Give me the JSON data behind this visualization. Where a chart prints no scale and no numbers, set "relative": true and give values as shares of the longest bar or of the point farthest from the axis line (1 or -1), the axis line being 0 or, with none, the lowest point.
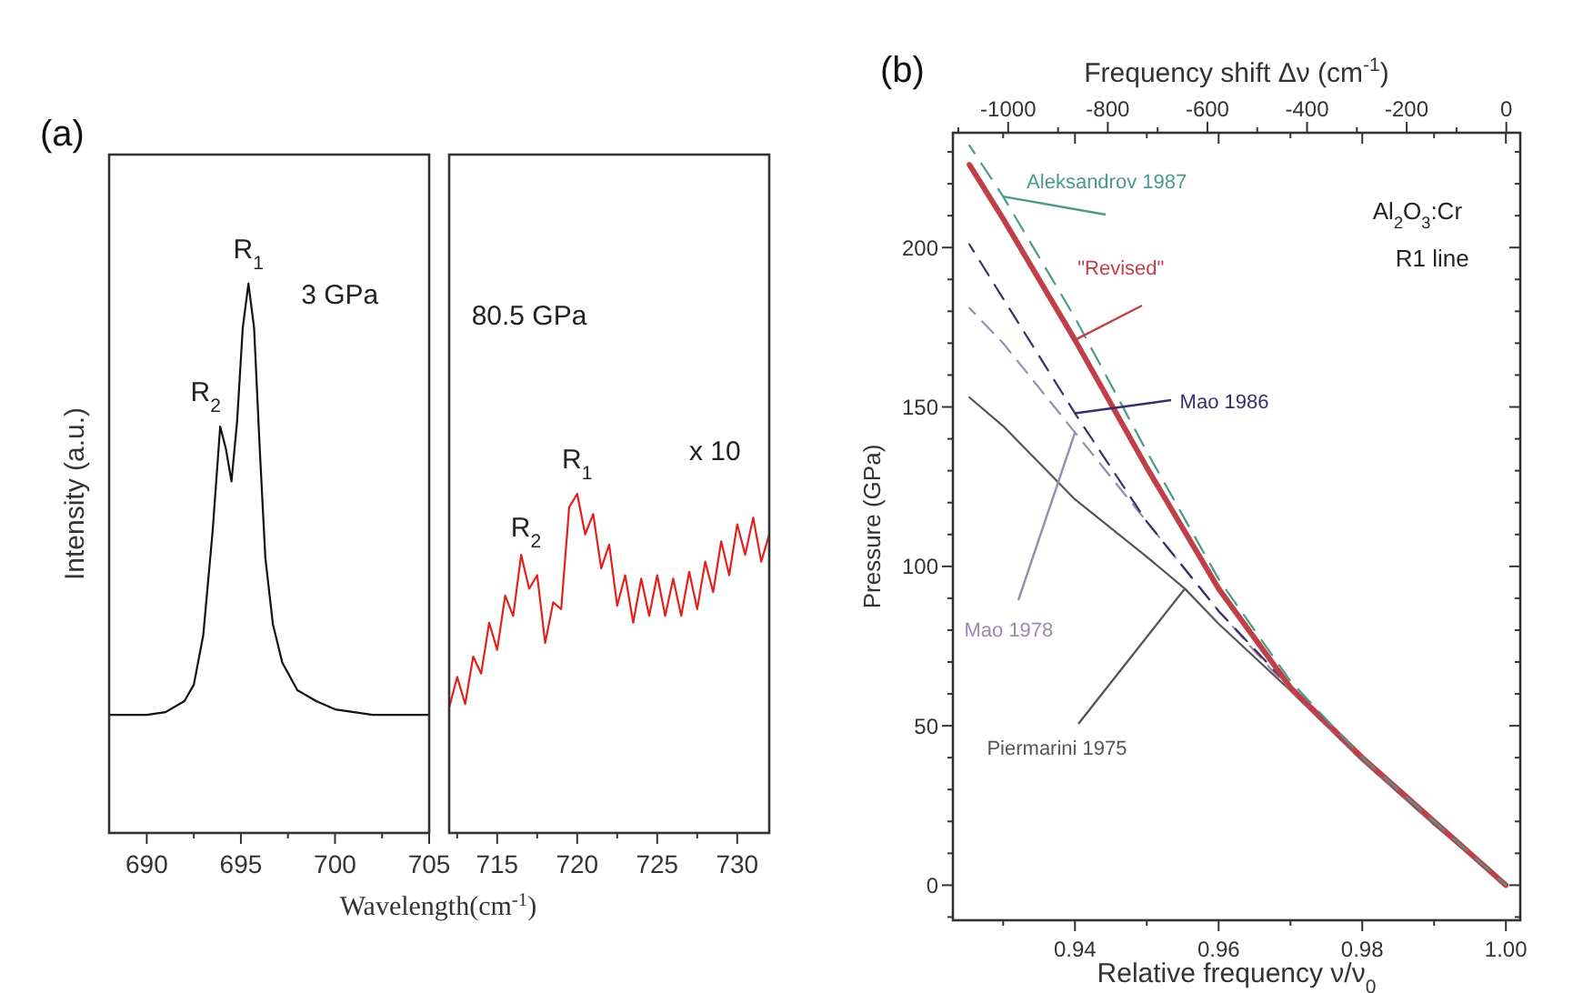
{
  "chart_data": [
    {
      "type": "line",
      "title": "(a)",
      "ylabel": "Intensity (a.u.)",
      "xlabel": "Wavelength(cm$^{-1}$)",
      "relative": true,
      "tick_labels": "x",
      "marker": "none",
      "grid": false,
      "xlim": [
        688,
        705
      ],
      "xticks": [
        690,
        {
          "value": 692.5,
          "label": null
        },
        695,
        {
          "value": 697.5,
          "label": null
        },
        700,
        {
          "value": 702.5,
          "label": null
        },
        705
      ],
      "annotations": [
        {
          "text": "R$_{1}$",
          "x": 695.4,
          "y": 1.0
        },
        {
          "text": "R$_{2}$",
          "x": 693.9,
          "y": 0.74
        },
        "3 GPa"
      ],
      "series": [
        {
          "color": "#111111",
          "x": [
            688,
            690,
            691,
            692,
            692.5,
            693,
            693.5,
            693.9,
            694.2,
            694.5,
            694.8,
            695.1,
            695.4,
            695.7,
            696,
            696.3,
            696.7,
            697.2,
            698,
            699,
            700,
            702,
            705
          ],
          "values": [
            0.215,
            0.215,
            0.22,
            0.24,
            0.27,
            0.36,
            0.55,
            0.74,
            0.7,
            0.64,
            0.75,
            0.92,
            1.0,
            0.92,
            0.7,
            0.5,
            0.38,
            0.31,
            0.26,
            0.24,
            0.225,
            0.215,
            0.215
          ]
        }
      ]
    },
    {
      "type": "line",
      "relative": true,
      "tick_labels": "x",
      "marker": "none",
      "grid": false,
      "xlim": [
        712,
        732
      ],
      "xticks": [
        {
          "value": 712.5,
          "label": null
        },
        715,
        {
          "value": 717.5,
          "label": null
        },
        720,
        {
          "value": 722.5,
          "label": null
        },
        725,
        {
          "value": 727.5,
          "label": null
        },
        730
      ],
      "annotations": [
        {
          "text": "R$_{2}$",
          "x": 716.8,
          "y": 0.8
        },
        {
          "text": "R$_{1}$",
          "x": 720,
          "y": 1.0
        },
        "80.5 GPa",
        "x 10"
      ],
      "series": [
        {
          "color": "#e3201c",
          "x": [
            712,
            712.5,
            713,
            713.5,
            714,
            714.5,
            715,
            715.5,
            716,
            716.5,
            717,
            717.5,
            718,
            718.5,
            719,
            719.5,
            720,
            720.5,
            721,
            721.5,
            722,
            722.5,
            723,
            723.5,
            724,
            724.5,
            725,
            725.5,
            726,
            726.5,
            727,
            727.5,
            728,
            728.5,
            729,
            729.5,
            730,
            730.5,
            731,
            731.5,
            732
          ],
          "values": [
            0.37,
            0.46,
            0.38,
            0.52,
            0.47,
            0.62,
            0.54,
            0.7,
            0.64,
            0.82,
            0.72,
            0.76,
            0.56,
            0.68,
            0.66,
            0.96,
            1.0,
            0.88,
            0.94,
            0.78,
            0.85,
            0.67,
            0.76,
            0.62,
            0.75,
            0.64,
            0.76,
            0.64,
            0.75,
            0.64,
            0.77,
            0.66,
            0.8,
            0.71,
            0.86,
            0.76,
            0.91,
            0.82,
            0.93,
            0.8,
            0.88
          ]
        }
      ]
    },
    {
      "type": "line",
      "title": "(b)",
      "xlabel": "Relative frequency ν/ν$_{0}$",
      "ylabel": "Pressure (GPa)",
      "x2label": "Frequency shift Δν (cm$^{-1}$)",
      "marker": "none",
      "grid": false,
      "xlim": [
        0.923,
        1.002
      ],
      "xticks": [
        {
          "value": 0.93,
          "label": null
        },
        0.94,
        {
          "value": 0.95,
          "label": null
        },
        0.96,
        {
          "value": 0.97,
          "label": null
        },
        0.98,
        {
          "value": 0.99,
          "label": null
        },
        {
          "value": 1.0,
          "label": "1.00"
        }
      ],
      "x2lim": [
        -1111,
        28
      ],
      "x2ticks": [
        {
          "value": -1100,
          "label": null
        },
        -1000,
        {
          "value": -900,
          "label": null
        },
        -800,
        {
          "value": -700,
          "label": null
        },
        -600,
        {
          "value": -500,
          "label": null
        },
        -400,
        {
          "value": -300,
          "label": null
        },
        -200,
        {
          "value": -100,
          "label": null
        },
        0
      ],
      "ylim": [
        -11,
        236
      ],
      "yticks": [
        {
          "value": -10,
          "label": null
        },
        0,
        {
          "value": 10,
          "label": null
        },
        {
          "value": 20,
          "label": null
        },
        {
          "value": 30,
          "label": null
        },
        {
          "value": 40,
          "label": null
        },
        50,
        {
          "value": 60,
          "label": null
        },
        {
          "value": 70,
          "label": null
        },
        {
          "value": 80,
          "label": null
        },
        {
          "value": 90,
          "label": null
        },
        100,
        {
          "value": 110,
          "label": null
        },
        {
          "value": 120,
          "label": null
        },
        {
          "value": 130,
          "label": null
        },
        {
          "value": 140,
          "label": null
        },
        150,
        {
          "value": 160,
          "label": null
        },
        {
          "value": 170,
          "label": null
        },
        {
          "value": 180,
          "label": null
        },
        {
          "value": 190,
          "label": null
        },
        200,
        {
          "value": 210,
          "label": null
        },
        {
          "value": 220,
          "label": null
        },
        {
          "value": 230,
          "label": null
        }
      ],
      "annotations": [
        "Al$_{2}$O$_{3}$:Cr",
        "R1 line"
      ],
      "series": [
        {
          "name": "Piermarini 1975",
          "color": "#555555",
          "line_style": "solid",
          "x": [
            0.9253,
            0.93,
            0.94,
            0.95,
            0.9553,
            0.96,
            0.97,
            0.98,
            0.99,
            1.0
          ],
          "values": [
            153,
            144,
            121,
            103,
            93,
            82,
            61,
            39,
            19,
            0
          ]
        },
        {
          "name": "Mao 1978",
          "color": "#9a8aae",
          "line_style": "dashed",
          "x": [
            0.9253,
            0.93,
            0.94,
            0.95,
            0.96,
            0.97,
            0.98,
            0.99,
            1.0
          ],
          "values": [
            181,
            170,
            142,
            114,
            86,
            61,
            39,
            19,
            0
          ]
        },
        {
          "name": "Mao 1986",
          "color": "#3b2d6b",
          "line_style": "dashed",
          "x": [
            0.9253,
            0.93,
            0.94,
            0.95,
            0.96,
            0.97,
            0.98,
            0.99,
            1.0
          ],
          "values": [
            201,
            184,
            148,
            114,
            86,
            62,
            40,
            20,
            0
          ]
        },
        {
          "name": "\"Revised\"",
          "color": "#c0404a",
          "line_style": "solid",
          "x": [
            0.9253,
            0.93,
            0.94,
            0.95,
            0.96,
            0.97,
            0.98,
            0.99,
            1.0
          ],
          "values": [
            226,
            209,
            171,
            131,
            93,
            62,
            40,
            20,
            0
          ]
        },
        {
          "name": "Aleksandrov 1987",
          "color": "#4a9a8a",
          "line_style": "dashed",
          "x": [
            0.9253,
            0.93,
            0.94,
            0.95,
            0.96,
            0.97,
            0.98,
            0.99,
            1.0
          ],
          "values": [
            232,
            216,
            178,
            136,
            96,
            64,
            40,
            20,
            0
          ]
        }
      ]
    }
  ]
}
